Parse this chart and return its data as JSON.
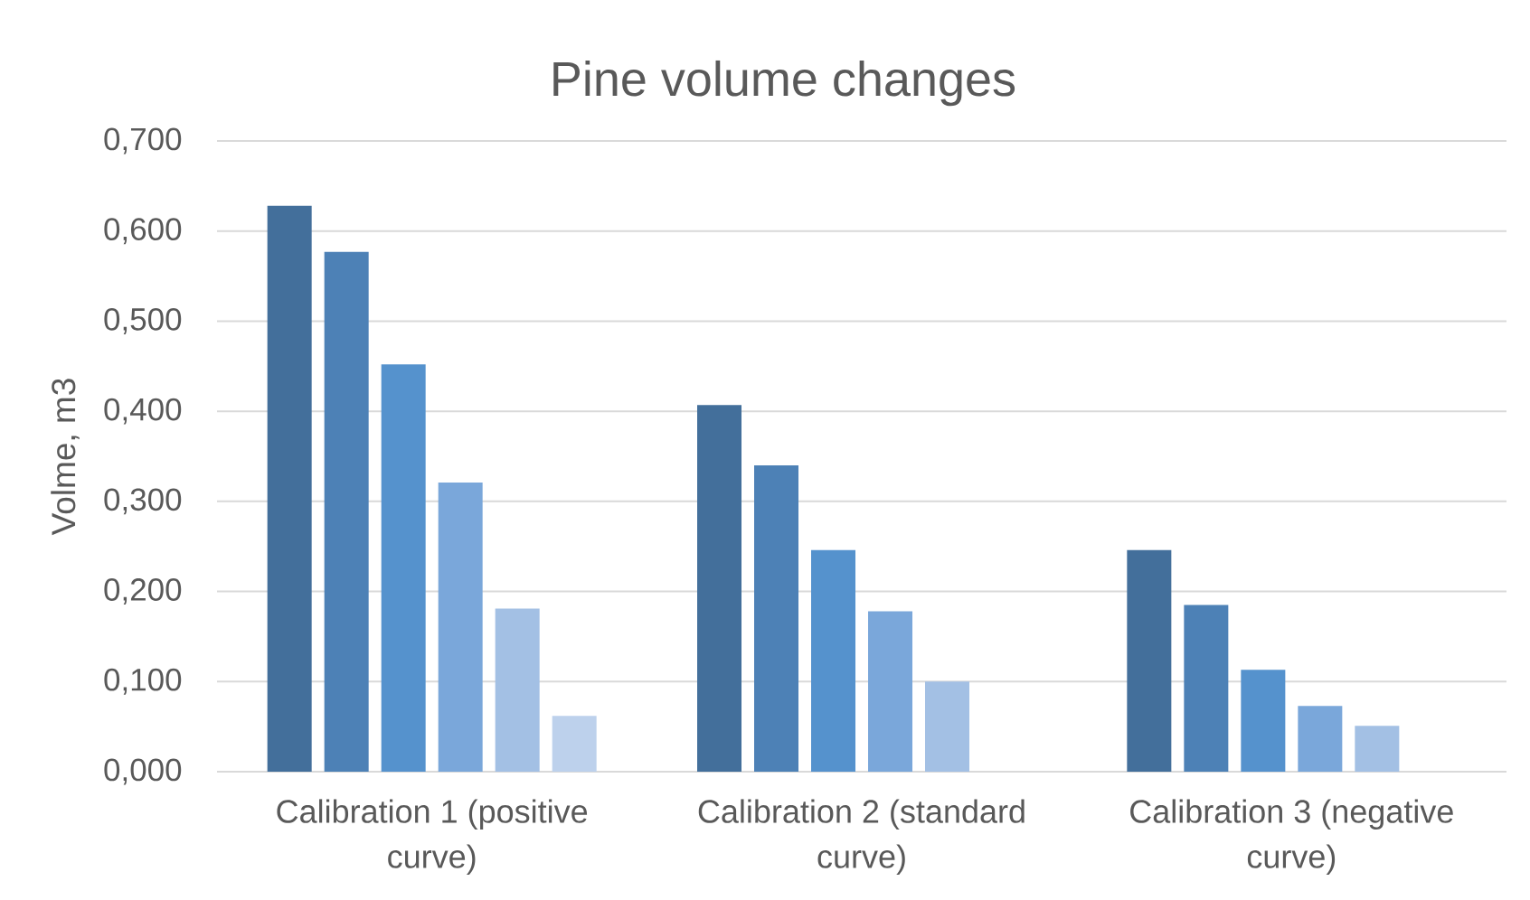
{
  "chart_data": {
    "type": "bar",
    "title": "Pine volume changes",
    "ylabel": "Volme, m3",
    "categories": [
      "Calibration 1 (positive curve)",
      "Calibration 2 (standard curve)",
      "Calibration 3 (negative curve)"
    ],
    "series": [
      {
        "color": "#436f9b",
        "values": [
          0.628,
          0.407,
          0.246
        ]
      },
      {
        "color": "#4d81b6",
        "values": [
          0.577,
          0.34,
          0.185
        ]
      },
      {
        "color": "#5592cd",
        "values": [
          0.452,
          0.246,
          0.113
        ]
      },
      {
        "color": "#7aa7da",
        "values": [
          0.321,
          0.178,
          0.073
        ]
      },
      {
        "color": "#a3c0e4",
        "values": [
          0.181,
          0.1,
          0.051
        ]
      },
      {
        "color": "#bdd1ec",
        "values": [
          0.062,
          null,
          null
        ]
      }
    ],
    "ylim": [
      0,
      0.7
    ],
    "yticks": [
      {
        "value": 0,
        "label": "0,000"
      },
      {
        "value": 0.1,
        "label": "0,100"
      },
      {
        "value": 0.2,
        "label": "0,200"
      },
      {
        "value": 0.3,
        "label": "0,300"
      },
      {
        "value": 0.4,
        "label": "0,400"
      },
      {
        "value": 0.5,
        "label": "0,500"
      },
      {
        "value": 0.6,
        "label": "0,600"
      },
      {
        "value": 0.7,
        "label": "0,700"
      }
    ],
    "grid": "y"
  }
}
